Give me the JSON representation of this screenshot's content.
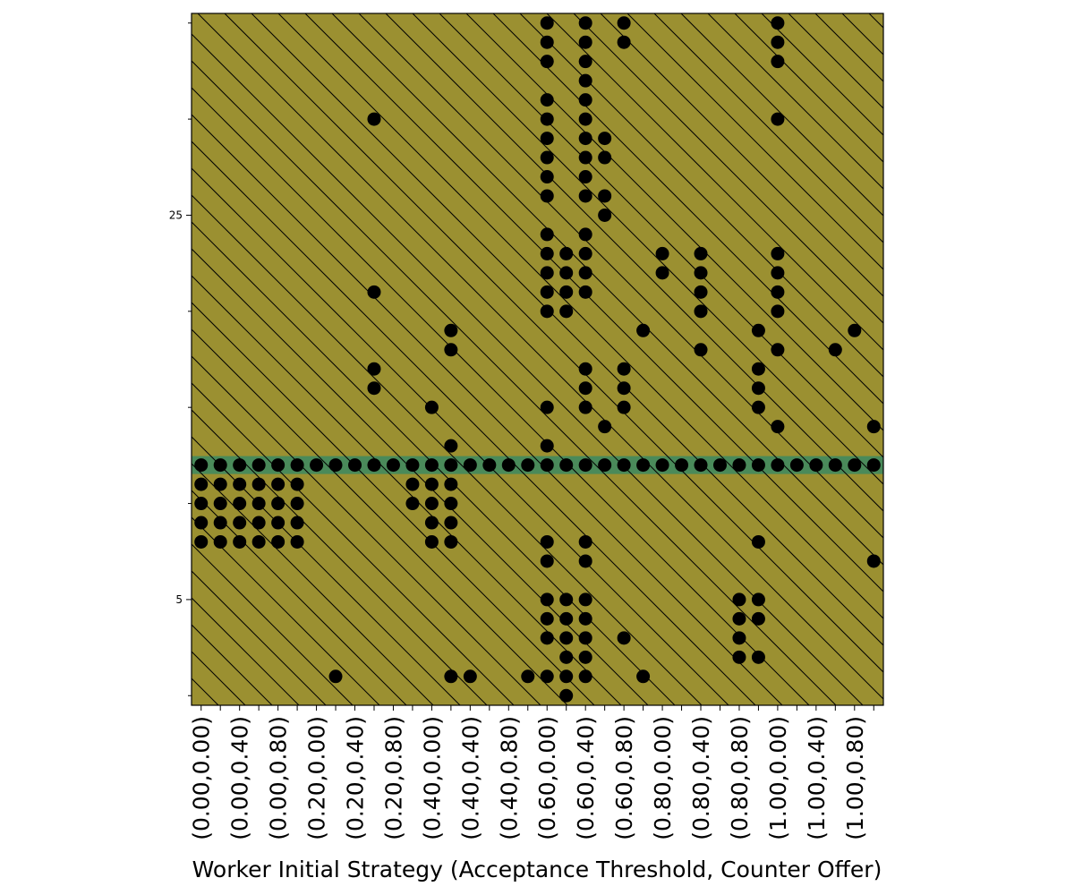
{
  "chart_data": {
    "type": "scatter",
    "xlabel": "Worker Initial Strategy (Acceptance Threshold, Counter Offer)",
    "ylabel": "",
    "colors": {
      "background": "#9b9031",
      "band": "#4a8a5a",
      "points": "#000000",
      "hatch": "#000000"
    },
    "hatch": "diagonal",
    "ylim": [
      -0.5,
      35.5
    ],
    "x_ticks": [
      {
        "index": 0,
        "label": "(0.00,0.00)"
      },
      {
        "index": 2,
        "label": "(0.00,0.40)"
      },
      {
        "index": 4,
        "label": "(0.00,0.80)"
      },
      {
        "index": 6,
        "label": "(0.20,0.00)"
      },
      {
        "index": 8,
        "label": "(0.20,0.40)"
      },
      {
        "index": 10,
        "label": "(0.20,0.80)"
      },
      {
        "index": 12,
        "label": "(0.40,0.00)"
      },
      {
        "index": 14,
        "label": "(0.40,0.40)"
      },
      {
        "index": 16,
        "label": "(0.40,0.80)"
      },
      {
        "index": 18,
        "label": "(0.60,0.00)"
      },
      {
        "index": 20,
        "label": "(0.60,0.40)"
      },
      {
        "index": 22,
        "label": "(0.60,0.80)"
      },
      {
        "index": 24,
        "label": "(0.80,0.00)"
      },
      {
        "index": 26,
        "label": "(0.80,0.40)"
      },
      {
        "index": 28,
        "label": "(0.80,0.80)"
      },
      {
        "index": 30,
        "label": "(1.00,0.00)"
      },
      {
        "index": 32,
        "label": "(1.00,0.40)"
      },
      {
        "index": 34,
        "label": "(1.00,0.80)"
      }
    ],
    "y_ticks": [
      {
        "value": 5,
        "label": "5"
      },
      {
        "value": 25,
        "label": "25"
      }
    ],
    "y_minor_ticks": [
      0,
      10,
      15,
      20,
      30,
      35
    ],
    "band_y": 12,
    "points": [
      [
        0,
        12
      ],
      [
        1,
        12
      ],
      [
        2,
        12
      ],
      [
        3,
        12
      ],
      [
        4,
        12
      ],
      [
        5,
        12
      ],
      [
        6,
        12
      ],
      [
        7,
        12
      ],
      [
        8,
        12
      ],
      [
        9,
        12
      ],
      [
        10,
        12
      ],
      [
        11,
        12
      ],
      [
        12,
        12
      ],
      [
        13,
        12
      ],
      [
        14,
        12
      ],
      [
        15,
        12
      ],
      [
        16,
        12
      ],
      [
        17,
        12
      ],
      [
        18,
        12
      ],
      [
        19,
        12
      ],
      [
        20,
        12
      ],
      [
        21,
        12
      ],
      [
        22,
        12
      ],
      [
        23,
        12
      ],
      [
        24,
        12
      ],
      [
        25,
        12
      ],
      [
        26,
        12
      ],
      [
        27,
        12
      ],
      [
        28,
        12
      ],
      [
        29,
        12
      ],
      [
        30,
        12
      ],
      [
        31,
        12
      ],
      [
        32,
        12
      ],
      [
        33,
        12
      ],
      [
        34,
        12
      ],
      [
        35,
        12
      ],
      [
        0,
        11
      ],
      [
        0,
        10
      ],
      [
        0,
        9
      ],
      [
        0,
        8
      ],
      [
        1,
        11
      ],
      [
        1,
        10
      ],
      [
        1,
        9
      ],
      [
        1,
        8
      ],
      [
        2,
        11
      ],
      [
        2,
        10
      ],
      [
        2,
        9
      ],
      [
        2,
        8
      ],
      [
        3,
        11
      ],
      [
        3,
        10
      ],
      [
        3,
        9
      ],
      [
        3,
        8
      ],
      [
        4,
        11
      ],
      [
        4,
        10
      ],
      [
        4,
        9
      ],
      [
        4,
        8
      ],
      [
        5,
        11
      ],
      [
        5,
        10
      ],
      [
        5,
        9
      ],
      [
        5,
        8
      ],
      [
        7,
        1
      ],
      [
        9,
        30
      ],
      [
        9,
        21
      ],
      [
        9,
        17
      ],
      [
        9,
        16
      ],
      [
        11,
        11
      ],
      [
        11,
        10
      ],
      [
        12,
        15
      ],
      [
        12,
        11
      ],
      [
        12,
        10
      ],
      [
        12,
        9
      ],
      [
        12,
        8
      ],
      [
        13,
        19
      ],
      [
        13,
        18
      ],
      [
        13,
        13
      ],
      [
        13,
        11
      ],
      [
        13,
        10
      ],
      [
        13,
        9
      ],
      [
        13,
        8
      ],
      [
        13,
        1
      ],
      [
        14,
        1
      ],
      [
        17,
        1
      ],
      [
        18,
        35
      ],
      [
        18,
        34
      ],
      [
        18,
        33
      ],
      [
        18,
        31
      ],
      [
        18,
        30
      ],
      [
        18,
        29
      ],
      [
        18,
        28
      ],
      [
        18,
        27
      ],
      [
        18,
        26
      ],
      [
        18,
        24
      ],
      [
        18,
        23
      ],
      [
        18,
        22
      ],
      [
        18,
        21
      ],
      [
        18,
        20
      ],
      [
        18,
        15
      ],
      [
        18,
        13
      ],
      [
        18,
        8
      ],
      [
        18,
        7
      ],
      [
        18,
        5
      ],
      [
        18,
        4
      ],
      [
        18,
        3
      ],
      [
        18,
        1
      ],
      [
        19,
        23
      ],
      [
        19,
        22
      ],
      [
        19,
        21
      ],
      [
        19,
        20
      ],
      [
        19,
        5
      ],
      [
        19,
        4
      ],
      [
        19,
        3
      ],
      [
        19,
        2
      ],
      [
        19,
        1
      ],
      [
        19,
        0
      ],
      [
        20,
        35
      ],
      [
        20,
        34
      ],
      [
        20,
        33
      ],
      [
        20,
        32
      ],
      [
        20,
        31
      ],
      [
        20,
        30
      ],
      [
        20,
        29
      ],
      [
        20,
        28
      ],
      [
        20,
        27
      ],
      [
        20,
        26
      ],
      [
        20,
        24
      ],
      [
        20,
        23
      ],
      [
        20,
        22
      ],
      [
        20,
        21
      ],
      [
        20,
        17
      ],
      [
        20,
        16
      ],
      [
        20,
        15
      ],
      [
        20,
        8
      ],
      [
        20,
        7
      ],
      [
        20,
        5
      ],
      [
        20,
        4
      ],
      [
        20,
        3
      ],
      [
        20,
        2
      ],
      [
        20,
        1
      ],
      [
        21,
        29
      ],
      [
        21,
        28
      ],
      [
        21,
        26
      ],
      [
        21,
        25
      ],
      [
        21,
        14
      ],
      [
        22,
        35
      ],
      [
        22,
        34
      ],
      [
        22,
        17
      ],
      [
        22,
        16
      ],
      [
        22,
        15
      ],
      [
        22,
        3
      ],
      [
        23,
        19
      ],
      [
        23,
        1
      ],
      [
        24,
        23
      ],
      [
        24,
        22
      ],
      [
        26,
        23
      ],
      [
        26,
        22
      ],
      [
        26,
        21
      ],
      [
        26,
        20
      ],
      [
        26,
        18
      ],
      [
        28,
        5
      ],
      [
        28,
        4
      ],
      [
        28,
        3
      ],
      [
        28,
        2
      ],
      [
        29,
        19
      ],
      [
        29,
        17
      ],
      [
        29,
        16
      ],
      [
        29,
        15
      ],
      [
        29,
        8
      ],
      [
        29,
        5
      ],
      [
        29,
        4
      ],
      [
        29,
        2
      ],
      [
        30,
        35
      ],
      [
        30,
        34
      ],
      [
        30,
        33
      ],
      [
        30,
        30
      ],
      [
        30,
        23
      ],
      [
        30,
        22
      ],
      [
        30,
        21
      ],
      [
        30,
        20
      ],
      [
        30,
        18
      ],
      [
        30,
        14
      ],
      [
        33,
        18
      ],
      [
        34,
        19
      ],
      [
        35,
        14
      ],
      [
        35,
        7
      ]
    ]
  }
}
